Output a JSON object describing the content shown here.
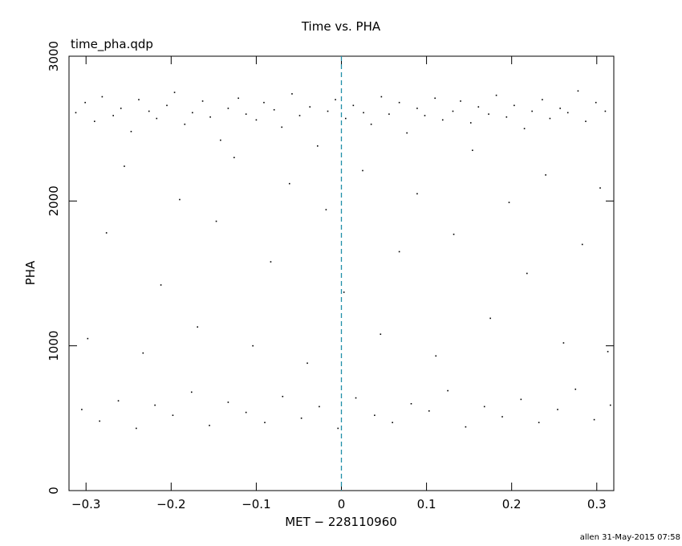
{
  "chart_data": {
    "type": "scatter",
    "title": "Time vs. PHA",
    "subtitle": "time_pha.qdp",
    "x_label": "MET − 228110960",
    "y_label": "PHA",
    "footer": "allen 31-May-2015 07:58",
    "color": "#000000",
    "vline": 0,
    "vline_color": "#1f8fa8",
    "xlim": [
      -0.32,
      0.32
    ],
    "ylim": [
      0,
      3000
    ],
    "xticks": [
      {
        "value": -0.3,
        "label": "−0.3"
      },
      {
        "value": -0.2,
        "label": "−0.2"
      },
      {
        "value": -0.1,
        "label": "−0.1"
      },
      0,
      0.1,
      0.2,
      0.3
    ],
    "yticks": [
      0,
      1000,
      2000,
      3000
    ],
    "x": [
      -0.312,
      -0.301,
      -0.29,
      -0.281,
      -0.268,
      -0.259,
      -0.247,
      -0.238,
      -0.226,
      -0.217,
      -0.205,
      -0.196,
      -0.184,
      -0.175,
      -0.163,
      -0.154,
      -0.142,
      -0.133,
      -0.121,
      -0.112,
      -0.1,
      -0.091,
      -0.079,
      -0.07,
      -0.058,
      -0.049,
      -0.037,
      -0.028,
      -0.016,
      -0.007,
      0.005,
      0.014,
      0.026,
      0.035,
      0.047,
      0.056,
      0.068,
      0.077,
      0.089,
      0.098,
      0.11,
      0.119,
      0.131,
      0.14,
      0.152,
      0.161,
      0.173,
      0.182,
      0.194,
      0.203,
      0.215,
      0.224,
      0.236,
      0.245,
      0.257,
      0.266,
      0.278,
      0.287,
      0.299,
      0.31,
      -0.305,
      -0.284,
      -0.262,
      -0.241,
      -0.219,
      -0.198,
      -0.176,
      -0.155,
      -0.133,
      -0.112,
      -0.09,
      -0.069,
      -0.047,
      -0.026,
      -0.004,
      0.017,
      0.039,
      0.06,
      0.082,
      0.103,
      0.125,
      0.146,
      0.168,
      0.189,
      0.211,
      0.232,
      0.254,
      0.275,
      0.297,
      0.316,
      -0.298,
      -0.276,
      -0.255,
      -0.233,
      -0.212,
      -0.19,
      -0.169,
      -0.147,
      -0.126,
      -0.104,
      -0.083,
      -0.061,
      -0.04,
      -0.018,
      0.003,
      0.025,
      0.046,
      0.068,
      0.089,
      0.111,
      0.132,
      0.154,
      0.175,
      0.197,
      0.218,
      0.24,
      0.261,
      0.283,
      0.304,
      0.313
    ],
    "values": [
      2610,
      2680,
      2550,
      2720,
      2590,
      2640,
      2480,
      2700,
      2620,
      2570,
      2660,
      2750,
      2530,
      2610,
      2690,
      2580,
      2420,
      2640,
      2710,
      2600,
      2560,
      2680,
      2630,
      2510,
      2740,
      2590,
      2650,
      2380,
      2620,
      2700,
      2570,
      2660,
      2610,
      2530,
      2720,
      2600,
      2680,
      2470,
      2640,
      2590,
      2710,
      2560,
      2620,
      2690,
      2540,
      2650,
      2600,
      2730,
      2580,
      2660,
      2500,
      2620,
      2700,
      2570,
      2640,
      2610,
      2760,
      2550,
      2680,
      2620,
      560,
      480,
      620,
      430,
      590,
      520,
      680,
      450,
      610,
      540,
      470,
      650,
      500,
      580,
      430,
      640,
      520,
      470,
      600,
      550,
      690,
      440,
      580,
      510,
      630,
      470,
      560,
      700,
      490,
      590,
      1050,
      1780,
      2240,
      950,
      1420,
      2010,
      1130,
      1860,
      2300,
      1000,
      1580,
      2120,
      880,
      1940,
      1370,
      2210,
      1080,
      1650,
      2050,
      930,
      1770,
      2350,
      1190,
      1990,
      1500,
      2180,
      1020,
      1700,
      2090,
      960
    ]
  }
}
